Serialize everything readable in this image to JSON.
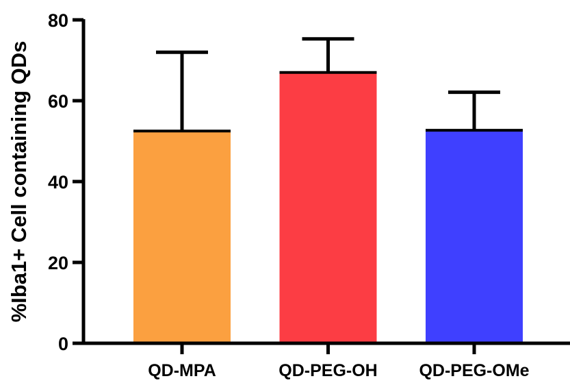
{
  "chart_data": {
    "type": "bar",
    "title": "",
    "xlabel": "",
    "ylabel": "%Iba1+ Cell containing QDs",
    "categories": [
      "QD-MPA",
      "QD-PEG-OH",
      "QD-PEG-OMe"
    ],
    "values": [
      52.5,
      67,
      52.7
    ],
    "error_upper": [
      72,
      75.3,
      62.1
    ],
    "colors": [
      "#FBA040",
      "#FC3D44",
      "#3F40FF"
    ],
    "ylim": [
      0,
      80
    ],
    "yticks": [
      "0",
      "20",
      "40",
      "60",
      "80"
    ],
    "grid": false,
    "legend": "none"
  }
}
